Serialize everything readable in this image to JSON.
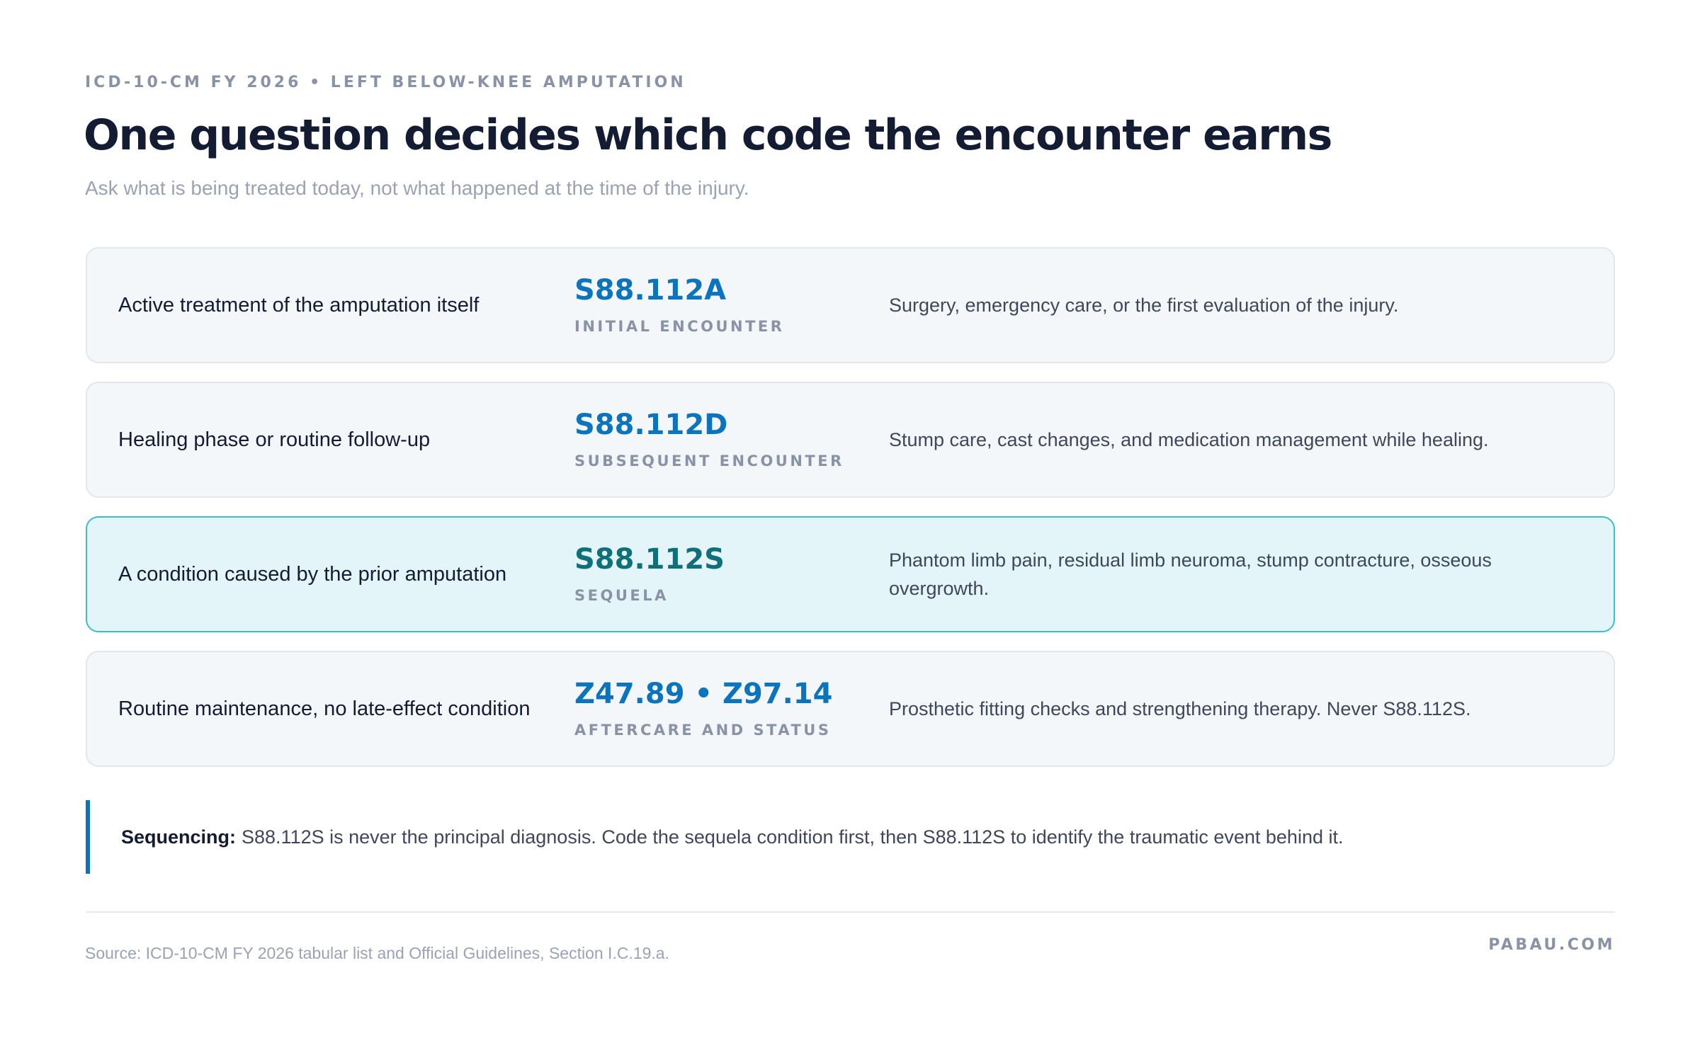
{
  "header": {
    "eyebrow": "ICD-10-CM FY 2026 • LEFT BELOW-KNEE AMPUTATION",
    "title": "One question decides which code the encounter earns",
    "subtitle": "Ask what is being treated today, not what happened at the time of the injury."
  },
  "rows": [
    {
      "situation": "Active treatment of the amputation itself",
      "code": "S88.112A",
      "code_label": "INITIAL ENCOUNTER",
      "description": "Surgery, emergency care, or the first evaluation of the injury."
    },
    {
      "situation": "Healing phase or routine follow-up",
      "code": "S88.112D",
      "code_label": "SUBSEQUENT ENCOUNTER",
      "description": "Stump care, cast changes, and medication management while healing."
    },
    {
      "situation": "A condition caused by the prior amputation",
      "code": "S88.112S",
      "code_label": "SEQUELA",
      "description": "Phantom limb pain, residual limb neuroma, stump contracture, osseous overgrowth."
    },
    {
      "situation": "Routine maintenance, no late-effect condition",
      "code": "Z47.89 • Z97.14",
      "code_label": "AFTERCARE AND STATUS",
      "description": "Prosthetic fitting checks and strengthening therapy. Never S88.112S."
    }
  ],
  "note": {
    "label": "Sequencing:",
    "text": "S88.112S is never the principal diagnosis. Code the sequela condition first, then S88.112S to identify the traumatic event behind it."
  },
  "footer": {
    "source": "Source: ICD-10-CM FY 2026 tabular list and Official Guidelines, Section I.C.19.a.",
    "brand": "PABAU.COM"
  }
}
